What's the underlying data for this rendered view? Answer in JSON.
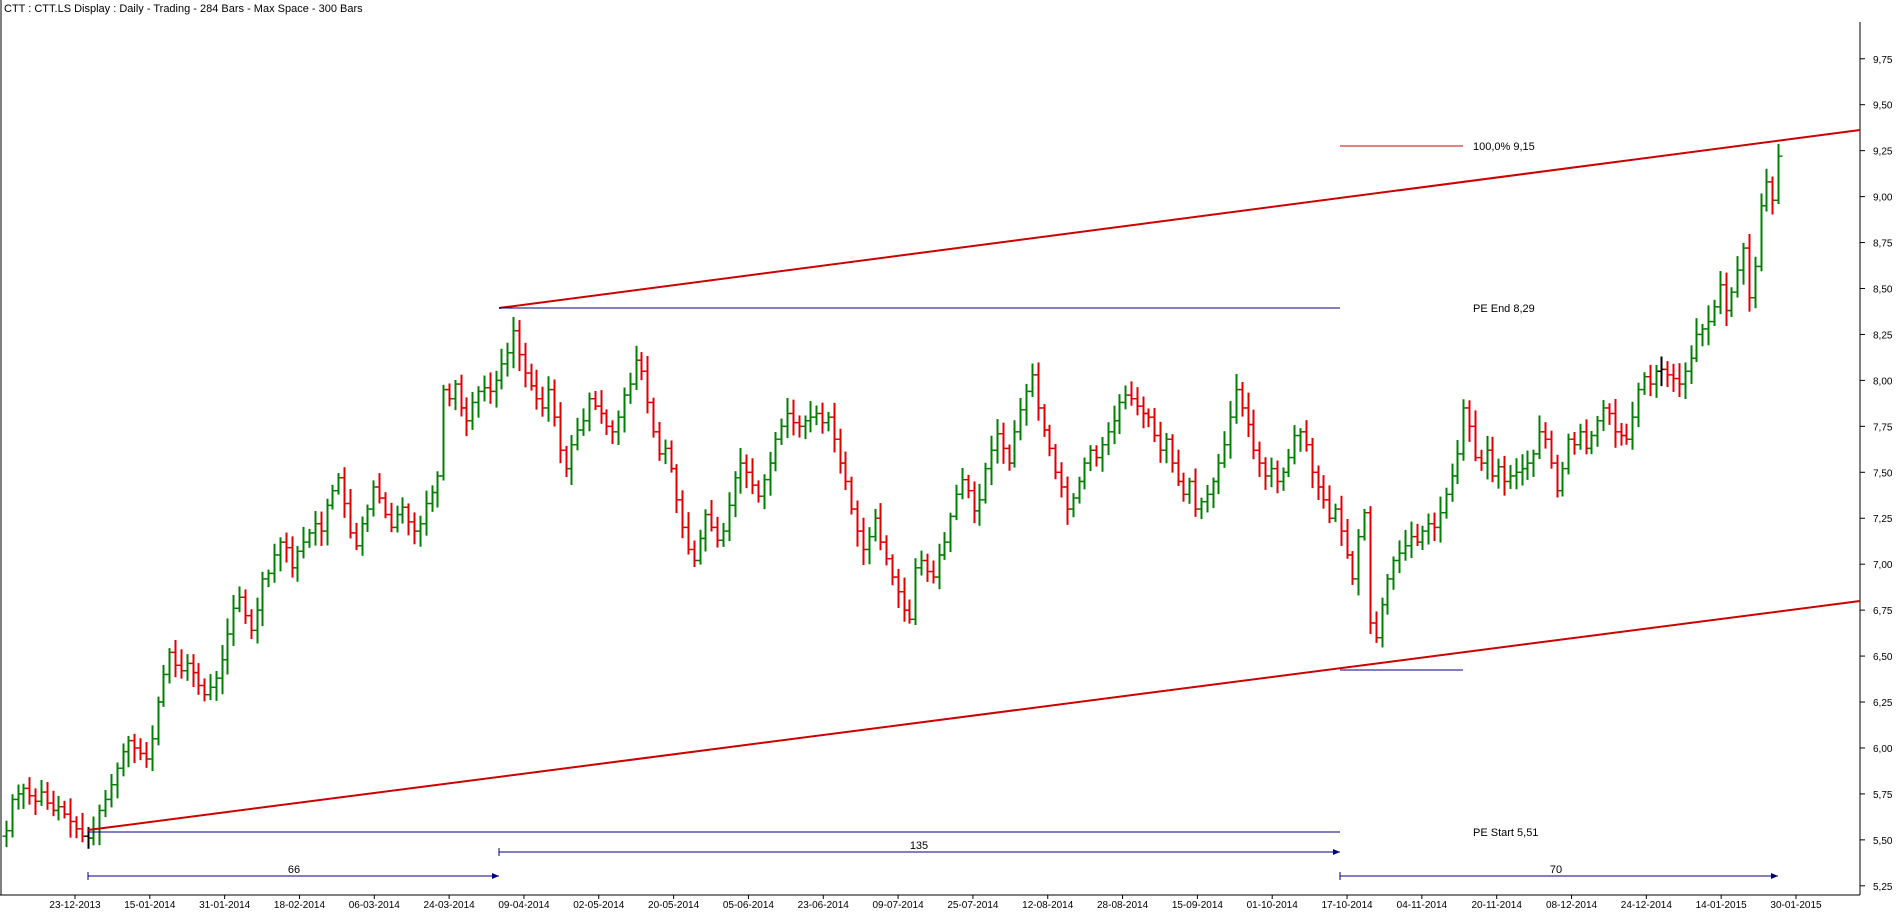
{
  "header": {
    "title": "CTT : CTT.LS Display :  Daily  - Trading - 284 Bars -  Max Space - 300 Bars"
  },
  "chart_data": {
    "type": "ohlc",
    "symbol": "CTT.LS",
    "ylim": [
      5.2,
      9.95
    ],
    "y_ticks": [
      "5,25",
      "5,50",
      "5,75",
      "6,00",
      "6,25",
      "6,50",
      "6,75",
      "7,00",
      "7,25",
      "7,50",
      "7,75",
      "8,00",
      "8,25",
      "8,50",
      "8,75",
      "9,00",
      "9,25",
      "9,50",
      "9,75"
    ],
    "x_ticks": [
      "23-12-2013",
      "15-01-2014",
      "31-01-2014",
      "18-02-2014",
      "06-03-2014",
      "24-03-2014",
      "09-04-2014",
      "02-05-2014",
      "20-05-2014",
      "05-06-2014",
      "23-06-2014",
      "09-07-2014",
      "25-07-2014",
      "12-08-2014",
      "28-08-2014",
      "15-09-2014",
      "01-10-2014",
      "17-10-2014",
      "04-11-2014",
      "20-11-2014",
      "08-12-2014",
      "24-12-2014",
      "14-01-2015",
      "30-01-2015"
    ],
    "closes": [
      5.55,
      5.72,
      5.75,
      5.78,
      5.74,
      5.71,
      5.76,
      5.7,
      5.66,
      5.68,
      5.64,
      5.6,
      5.56,
      5.52,
      5.51,
      5.56,
      5.66,
      5.72,
      5.8,
      5.89,
      5.98,
      6.04,
      6.0,
      5.97,
      5.94,
      6.05,
      6.25,
      6.4,
      6.52,
      6.45,
      6.42,
      6.46,
      6.41,
      6.34,
      6.29,
      6.33,
      6.38,
      6.48,
      6.62,
      6.76,
      6.82,
      6.72,
      6.64,
      6.75,
      6.92,
      6.95,
      7.05,
      7.12,
      7.09,
      6.98,
      7.07,
      7.12,
      7.17,
      7.22,
      7.18,
      7.32,
      7.4,
      7.47,
      7.33,
      7.17,
      7.1,
      7.22,
      7.3,
      7.42,
      7.36,
      7.27,
      7.2,
      7.27,
      7.31,
      7.23,
      7.18,
      7.22,
      7.33,
      7.39,
      7.48,
      7.95,
      7.9,
      7.98,
      7.85,
      7.78,
      7.88,
      7.94,
      7.96,
      7.94,
      8.0,
      8.09,
      8.15,
      8.27,
      8.14,
      8.04,
      7.97,
      7.9,
      7.85,
      7.95,
      7.8,
      7.62,
      7.52,
      7.65,
      7.73,
      7.78,
      7.9,
      7.86,
      7.82,
      7.75,
      7.72,
      7.8,
      7.92,
      7.98,
      8.11,
      8.05,
      7.88,
      7.72,
      7.6,
      7.63,
      7.52,
      7.35,
      7.2,
      7.08,
      7.02,
      7.14,
      7.27,
      7.2,
      7.13,
      7.18,
      7.32,
      7.47,
      7.55,
      7.5,
      7.43,
      7.37,
      7.46,
      7.55,
      7.68,
      7.75,
      7.82,
      7.77,
      7.75,
      7.78,
      7.8,
      7.82,
      7.77,
      7.8,
      7.68,
      7.55,
      7.45,
      7.3,
      7.18,
      7.08,
      7.15,
      7.25,
      7.12,
      7.03,
      6.93,
      6.85,
      6.75,
      6.7,
      6.98,
      7.02,
      6.96,
      6.93,
      7.05,
      7.12,
      7.26,
      7.38,
      7.46,
      7.4,
      7.29,
      7.35,
      7.52,
      7.62,
      7.71,
      7.63,
      7.55,
      7.72,
      7.84,
      7.94,
      8.03,
      7.85,
      7.73,
      7.63,
      7.5,
      7.42,
      7.3,
      7.36,
      7.45,
      7.55,
      7.62,
      7.58,
      7.65,
      7.72,
      7.78,
      7.88,
      7.92,
      7.9,
      7.86,
      7.82,
      7.8,
      7.7,
      7.62,
      7.68,
      7.55,
      7.45,
      7.38,
      7.45,
      7.3,
      7.34,
      7.38,
      7.45,
      7.55,
      7.65,
      7.8,
      7.95,
      7.85,
      7.76,
      7.62,
      7.55,
      7.48,
      7.52,
      7.45,
      7.5,
      7.58,
      7.7,
      7.72,
      7.65,
      7.5,
      7.42,
      7.35,
      7.25,
      7.3,
      7.18,
      7.05,
      6.92,
      7.15,
      7.28,
      6.68,
      6.6,
      6.78,
      6.92,
      7.02,
      7.06,
      7.1,
      7.15,
      7.12,
      7.18,
      7.22,
      7.2,
      7.28,
      7.38,
      7.48,
      7.6,
      7.85,
      7.75,
      7.58,
      7.55,
      7.62,
      7.48,
      7.53,
      7.45,
      7.48,
      7.5,
      7.52,
      7.55,
      7.6,
      7.72,
      7.68,
      7.55,
      7.4,
      7.52,
      7.68,
      7.65,
      7.72,
      7.63,
      7.7,
      7.78,
      7.85,
      7.82,
      7.72,
      7.7,
      7.68,
      7.8,
      7.95,
      8.02,
      7.98,
      8.05,
      8.06,
      8.03,
      8.01,
      7.98,
      8.05,
      8.12,
      8.25,
      8.28,
      8.32,
      8.4,
      8.52,
      8.38,
      8.48,
      8.6,
      8.72,
      8.45,
      8.62,
      8.95,
      9.08,
      8.98,
      9.22
    ],
    "annotations": {
      "pct_label": "100,0% 9,15",
      "pe_end_label": "PE End 8,29",
      "pe_start_label": "PE Start 5,51",
      "span_labels": [
        "66",
        "135",
        "70"
      ]
    },
    "colors": {
      "up": "#008000",
      "down": "#e00000",
      "neutral_dark": "#000000",
      "neutral_blue": "#0000cc",
      "trendline": "#cc0000",
      "annotation_line": "#000080",
      "text": "#000000"
    }
  }
}
